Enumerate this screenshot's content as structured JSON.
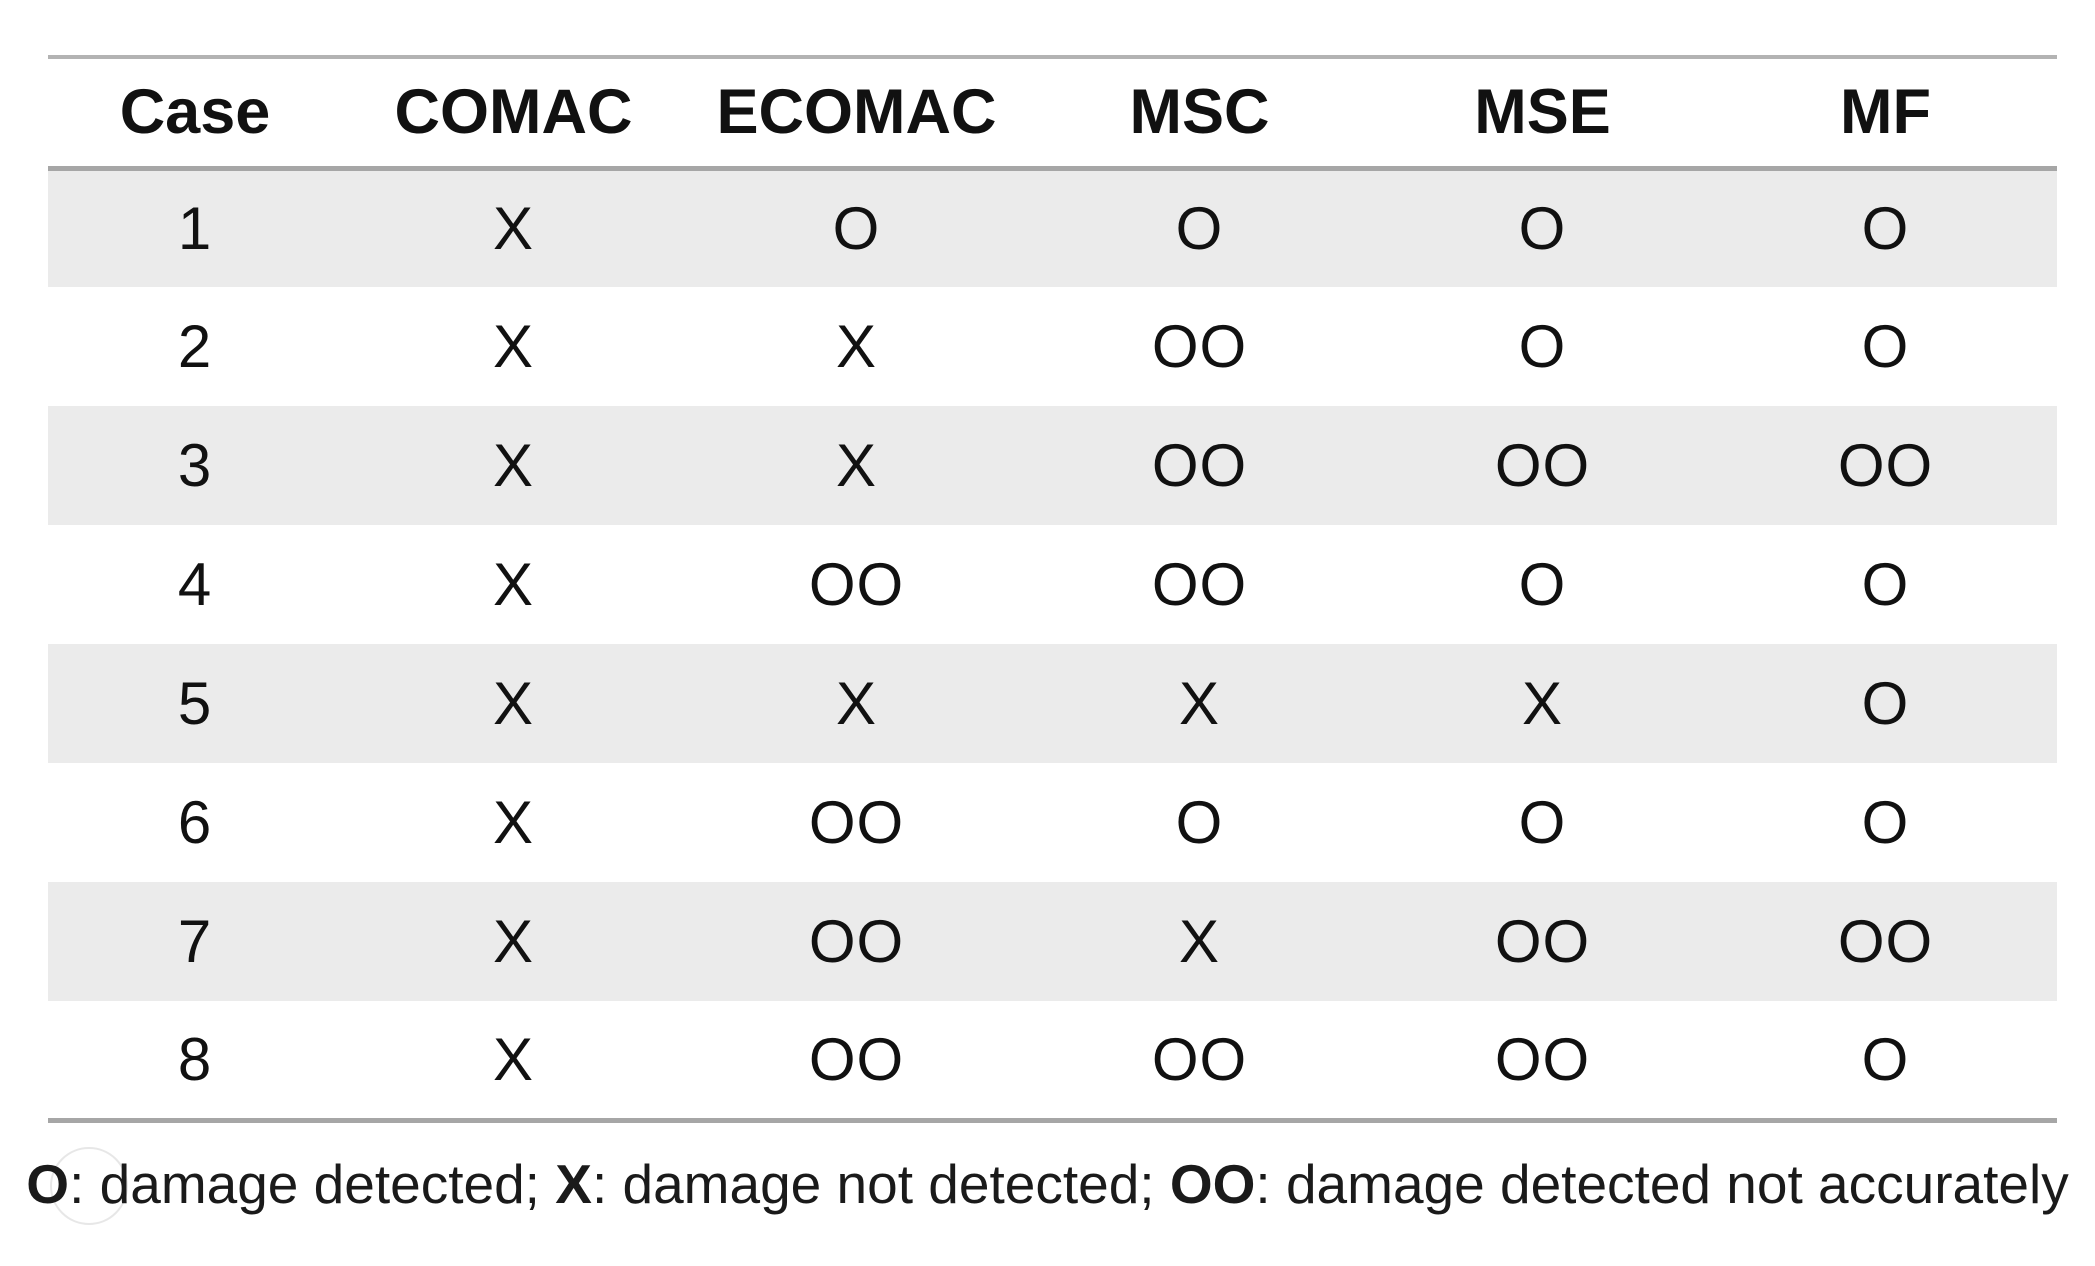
{
  "colors": {
    "row_stripe": "#ebebeb",
    "rule": "#a6a6a6",
    "top_rule": "#b3b3b3",
    "faint_circle": "#e7e7e7",
    "text": "#111111"
  },
  "table": {
    "columns": [
      "Case",
      "COMAC",
      "ECOMAC",
      "MSC",
      "MSE",
      "MF"
    ],
    "rows": [
      [
        "1",
        "X",
        "O",
        "O",
        "O",
        "O"
      ],
      [
        "2",
        "X",
        "X",
        "OO",
        "O",
        "O"
      ],
      [
        "3",
        "X",
        "X",
        "OO",
        "OO",
        "OO"
      ],
      [
        "4",
        "X",
        "OO",
        "OO",
        "O",
        "O"
      ],
      [
        "5",
        "X",
        "X",
        "X",
        "X",
        "O"
      ],
      [
        "6",
        "X",
        "OO",
        "O",
        "O",
        "O"
      ],
      [
        "7",
        "X",
        "OO",
        "X",
        "OO",
        "OO"
      ],
      [
        "8",
        "X",
        "OO",
        "OO",
        "OO",
        "O"
      ]
    ]
  },
  "legend": {
    "segments": [
      {
        "text": "O",
        "bold": true
      },
      {
        "text": ": damage detected; ",
        "bold": false
      },
      {
        "text": "X",
        "bold": true
      },
      {
        "text": ": damage not detected; ",
        "bold": false
      },
      {
        "text": "OO",
        "bold": true
      },
      {
        "text": ": damage detected not accurately",
        "bold": false
      }
    ]
  }
}
